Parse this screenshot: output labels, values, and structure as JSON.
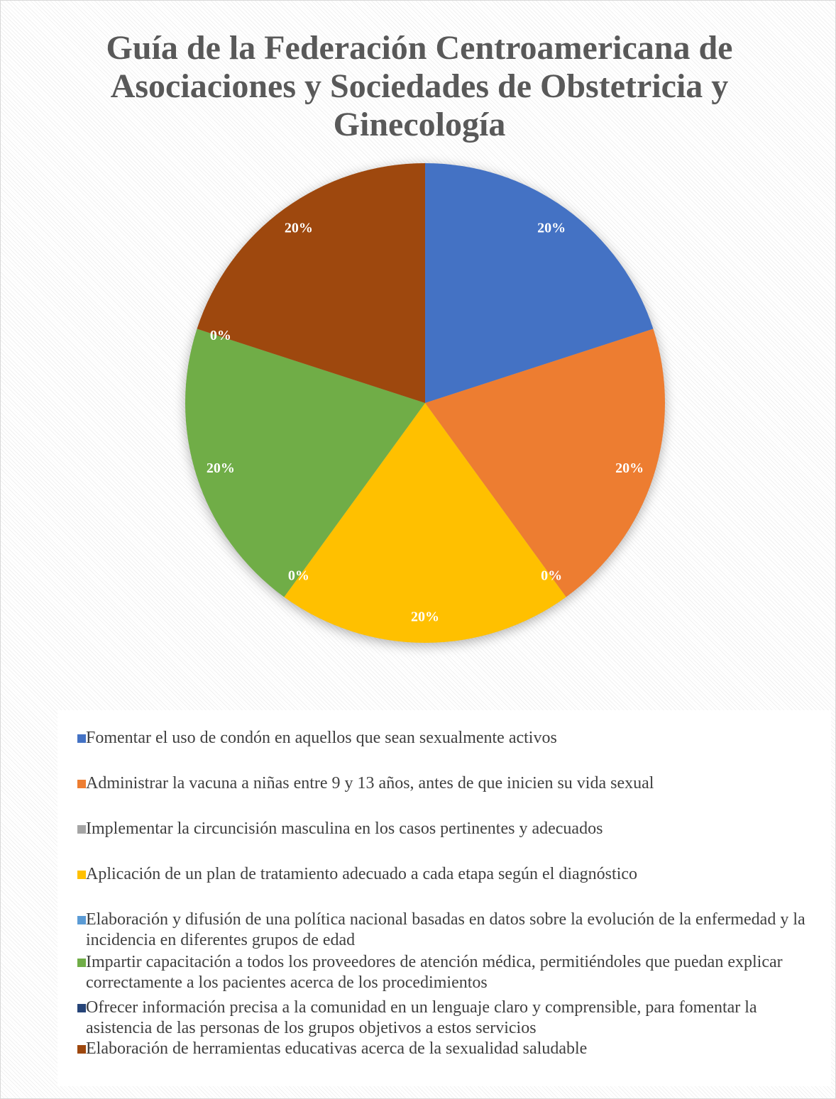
{
  "chart_data": {
    "type": "pie",
    "title": "Guía de la Federación Centroamericana de Asociaciones y Sociedades de Obstetricia y Ginecología",
    "categories": [
      "Fomentar el uso de condón en aquellos que sean sexualmente activos",
      "Administrar la vacuna a niñas entre 9 y 13 años, antes de que inicien su vida sexual",
      "Implementar la circuncisión masculina en los casos pertinentes y adecuados",
      "Aplicación de un plan de tratamiento adecuado a cada etapa según el diagnóstico",
      "Elaboración y difusión de una política nacional basadas en datos sobre la evolución de la enfermedad y la incidencia en diferentes grupos de edad",
      "Impartir capacitación a todos los proveedores de atención médica, permitiéndoles  que puedan explicar correctamente a los pacientes acerca de los procedimientos",
      "Ofrecer información precisa a la comunidad en un lenguaje claro y comprensible, para fomentar la asistencia de las personas de los grupos objetivos a estos servicios",
      "Elaboración de herramientas educativas acerca de la sexualidad saludable"
    ],
    "values": [
      20,
      20,
      0,
      20,
      0,
      20,
      0,
      20
    ],
    "value_labels": [
      "20%",
      "20%",
      "0%",
      "20%",
      "0%",
      "20%",
      "0%",
      "20%"
    ],
    "colors": [
      "#4472c4",
      "#ed7d31",
      "#a5a5a5",
      "#ffc000",
      "#5b9bd5",
      "#70ad47",
      "#264478",
      "#9e480e"
    ],
    "legend": "bottom"
  }
}
